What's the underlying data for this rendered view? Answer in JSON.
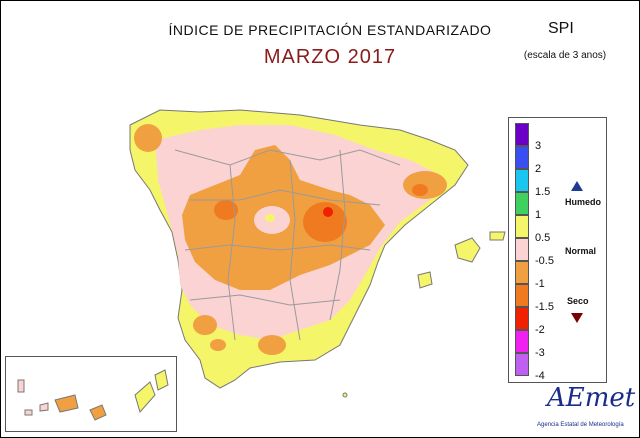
{
  "header": {
    "title": "ÍNDICE DE PRECIPITACIÓN ESTANDARIZADO",
    "subtitle": "MARZO 2017",
    "index_name": "SPI",
    "scale_note": "(escala de 3 anos)"
  },
  "legend": {
    "ticks": [
      "3",
      "2",
      "1.5",
      "1",
      "0.5",
      "-0.5",
      "-1",
      "-1.5",
      "-2",
      "-3",
      "-4"
    ],
    "colors": [
      "#6a00c8",
      "#3a4ff0",
      "#18c6f0",
      "#40d060",
      "#f5f56a",
      "#fbd3d3",
      "#f0a040",
      "#f07a20",
      "#f02000",
      "#f020f0",
      "#c060f0"
    ],
    "humid_label": "Humedo",
    "normal_label": "Normal",
    "dry_label": "Seco"
  },
  "map_colors": {
    "normal_wet": "#f5f56a",
    "normal": "#fbd3d3",
    "dry_moderate": "#f0a040",
    "dry_severe": "#f07a20",
    "dry_extreme": "#f02000",
    "border": "#9a9a9a"
  },
  "logo": {
    "brand": "AEmet",
    "tagline": "Agencia Estatal de Meteorología"
  }
}
